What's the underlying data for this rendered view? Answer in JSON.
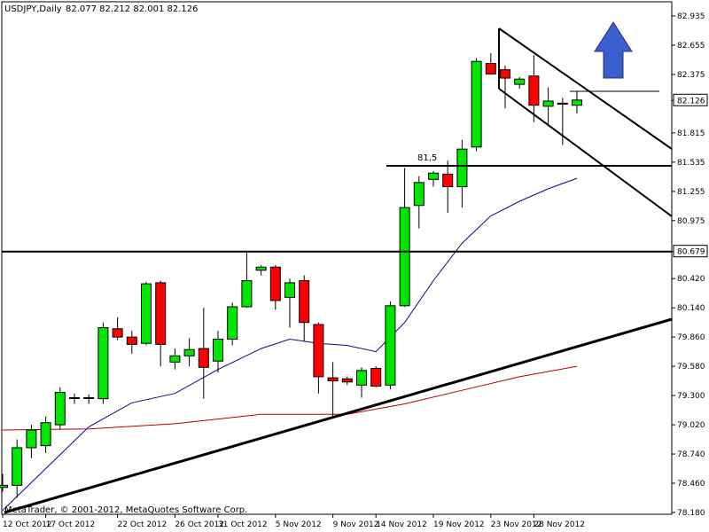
{
  "header": {
    "symbol": "USDJPY,Daily",
    "ohlc": "82.077 82.212 82.001 82.126"
  },
  "footer": {
    "copyright": "MetaTrader, © 2001-2012, MetaQuotes Software Corp."
  },
  "colors": {
    "bull": "#00e600",
    "bear": "#ff0000",
    "sma_fast": "#0a0a80",
    "sma_slow": "#b00000",
    "trendline": "#000000",
    "arrow": "#3a5fcd",
    "grid_line": "#000000"
  },
  "annotations": {
    "level_label": "81,5",
    "resistance_level": 80.679,
    "level_815": 81.5,
    "arrow": "up-arrow"
  },
  "chart_data": {
    "type": "candlestick",
    "price_ticks": [
      "82.935",
      "82.655",
      "82.375",
      "82.126",
      "81.815",
      "81.535",
      "81.255",
      "80.975",
      "80.679",
      "80.420",
      "80.140",
      "79.860",
      "79.580",
      "79.300",
      "79.020",
      "78.740",
      "78.460",
      "78.180"
    ],
    "ylim": [
      78.18,
      82.935
    ],
    "date_ticks": [
      {
        "label": "12 Oct 2012",
        "index": 0
      },
      {
        "label": "17 Oct 2012",
        "index": 3
      },
      {
        "label": "22 Oct 2012",
        "index": 8
      },
      {
        "label": "26 Oct 2012",
        "index": 12
      },
      {
        "label": "31 Oct 2012",
        "index": 15
      },
      {
        "label": "5 Nov 2012",
        "index": 19
      },
      {
        "label": "9 Nov 2012",
        "index": 23
      },
      {
        "label": "14 Nov 2012",
        "index": 26
      },
      {
        "label": "19 Nov 2012",
        "index": 30
      },
      {
        "label": "23 Nov 2012",
        "index": 34
      },
      {
        "label": "28 Nov 2012",
        "index": 37
      }
    ],
    "candles": [
      {
        "o": 78.42,
        "h": 78.55,
        "l": 78.38,
        "c": 78.44
      },
      {
        "o": 78.44,
        "h": 78.88,
        "l": 78.32,
        "c": 78.8
      },
      {
        "o": 78.8,
        "h": 79.02,
        "l": 78.7,
        "c": 78.97
      },
      {
        "o": 78.82,
        "h": 79.1,
        "l": 78.75,
        "c": 79.04
      },
      {
        "o": 79.02,
        "h": 79.38,
        "l": 78.98,
        "c": 79.33
      },
      {
        "o": 79.28,
        "h": 79.32,
        "l": 79.22,
        "c": 79.28
      },
      {
        "o": 79.28,
        "h": 79.31,
        "l": 79.22,
        "c": 79.28
      },
      {
        "o": 79.27,
        "h": 80.0,
        "l": 79.22,
        "c": 79.95
      },
      {
        "o": 79.94,
        "h": 80.05,
        "l": 79.83,
        "c": 79.86
      },
      {
        "o": 79.86,
        "h": 79.92,
        "l": 79.7,
        "c": 79.79
      },
      {
        "o": 79.8,
        "h": 80.39,
        "l": 79.78,
        "c": 80.37
      },
      {
        "o": 80.38,
        "h": 80.4,
        "l": 79.58,
        "c": 79.79
      },
      {
        "o": 79.62,
        "h": 79.75,
        "l": 79.55,
        "c": 79.68
      },
      {
        "o": 79.68,
        "h": 79.85,
        "l": 79.58,
        "c": 79.74
      },
      {
        "o": 79.75,
        "h": 80.14,
        "l": 79.27,
        "c": 79.57
      },
      {
        "o": 79.63,
        "h": 79.92,
        "l": 79.52,
        "c": 79.84
      },
      {
        "o": 79.84,
        "h": 80.19,
        "l": 79.78,
        "c": 80.15
      },
      {
        "o": 80.15,
        "h": 80.68,
        "l": 80.14,
        "c": 80.4
      },
      {
        "o": 80.5,
        "h": 80.55,
        "l": 80.45,
        "c": 80.53
      },
      {
        "o": 80.53,
        "h": 80.55,
        "l": 80.12,
        "c": 80.21
      },
      {
        "o": 80.24,
        "h": 80.42,
        "l": 79.95,
        "c": 80.38
      },
      {
        "o": 80.4,
        "h": 80.45,
        "l": 79.82,
        "c": 80.0
      },
      {
        "o": 79.98,
        "h": 80.0,
        "l": 79.32,
        "c": 79.48
      },
      {
        "o": 79.47,
        "h": 79.62,
        "l": 79.08,
        "c": 79.44
      },
      {
        "o": 79.46,
        "h": 79.48,
        "l": 79.4,
        "c": 79.43
      },
      {
        "o": 79.4,
        "h": 79.57,
        "l": 79.28,
        "c": 79.54
      },
      {
        "o": 79.56,
        "h": 79.58,
        "l": 79.38,
        "c": 79.39
      },
      {
        "o": 79.4,
        "h": 80.2,
        "l": 79.36,
        "c": 80.16
      },
      {
        "o": 80.16,
        "h": 81.48,
        "l": 80.15,
        "c": 81.1
      },
      {
        "o": 81.12,
        "h": 81.4,
        "l": 80.9,
        "c": 81.34
      },
      {
        "o": 81.37,
        "h": 81.45,
        "l": 81.3,
        "c": 81.43
      },
      {
        "o": 81.42,
        "h": 81.55,
        "l": 81.05,
        "c": 81.3
      },
      {
        "o": 81.3,
        "h": 81.75,
        "l": 81.1,
        "c": 81.66
      },
      {
        "o": 81.68,
        "h": 82.53,
        "l": 81.64,
        "c": 82.5
      },
      {
        "o": 82.48,
        "h": 82.58,
        "l": 82.38,
        "c": 82.38
      },
      {
        "o": 82.42,
        "h": 82.46,
        "l": 82.05,
        "c": 82.34
      },
      {
        "o": 82.28,
        "h": 82.35,
        "l": 82.24,
        "c": 82.33
      },
      {
        "o": 82.36,
        "h": 82.56,
        "l": 81.92,
        "c": 82.08
      },
      {
        "o": 82.07,
        "h": 82.25,
        "l": 81.88,
        "c": 82.12
      },
      {
        "o": 82.09,
        "h": 82.15,
        "l": 81.7,
        "c": 82.1
      },
      {
        "o": 82.08,
        "h": 82.21,
        "l": 82.0,
        "c": 82.13
      }
    ],
    "sma_fast": [
      {
        "i": 0,
        "v": 78.2
      },
      {
        "i": 3,
        "v": 78.6
      },
      {
        "i": 6,
        "v": 79.0
      },
      {
        "i": 9,
        "v": 79.23
      },
      {
        "i": 12,
        "v": 79.32
      },
      {
        "i": 15,
        "v": 79.55
      },
      {
        "i": 18,
        "v": 79.75
      },
      {
        "i": 20,
        "v": 79.84
      },
      {
        "i": 22,
        "v": 79.8
      },
      {
        "i": 24,
        "v": 79.78
      },
      {
        "i": 26,
        "v": 79.72
      },
      {
        "i": 28,
        "v": 80.0
      },
      {
        "i": 30,
        "v": 80.4
      },
      {
        "i": 32,
        "v": 80.76
      },
      {
        "i": 34,
        "v": 81.02
      },
      {
        "i": 36,
        "v": 81.16
      },
      {
        "i": 38,
        "v": 81.28
      },
      {
        "i": 40,
        "v": 81.38
      }
    ],
    "sma_slow": [
      {
        "i": 0,
        "v": 78.97
      },
      {
        "i": 6,
        "v": 78.98
      },
      {
        "i": 12,
        "v": 79.03
      },
      {
        "i": 18,
        "v": 79.12
      },
      {
        "i": 24,
        "v": 79.12
      },
      {
        "i": 28,
        "v": 79.22
      },
      {
        "i": 32,
        "v": 79.35
      },
      {
        "i": 36,
        "v": 79.48
      },
      {
        "i": 40,
        "v": 79.58
      }
    ]
  }
}
